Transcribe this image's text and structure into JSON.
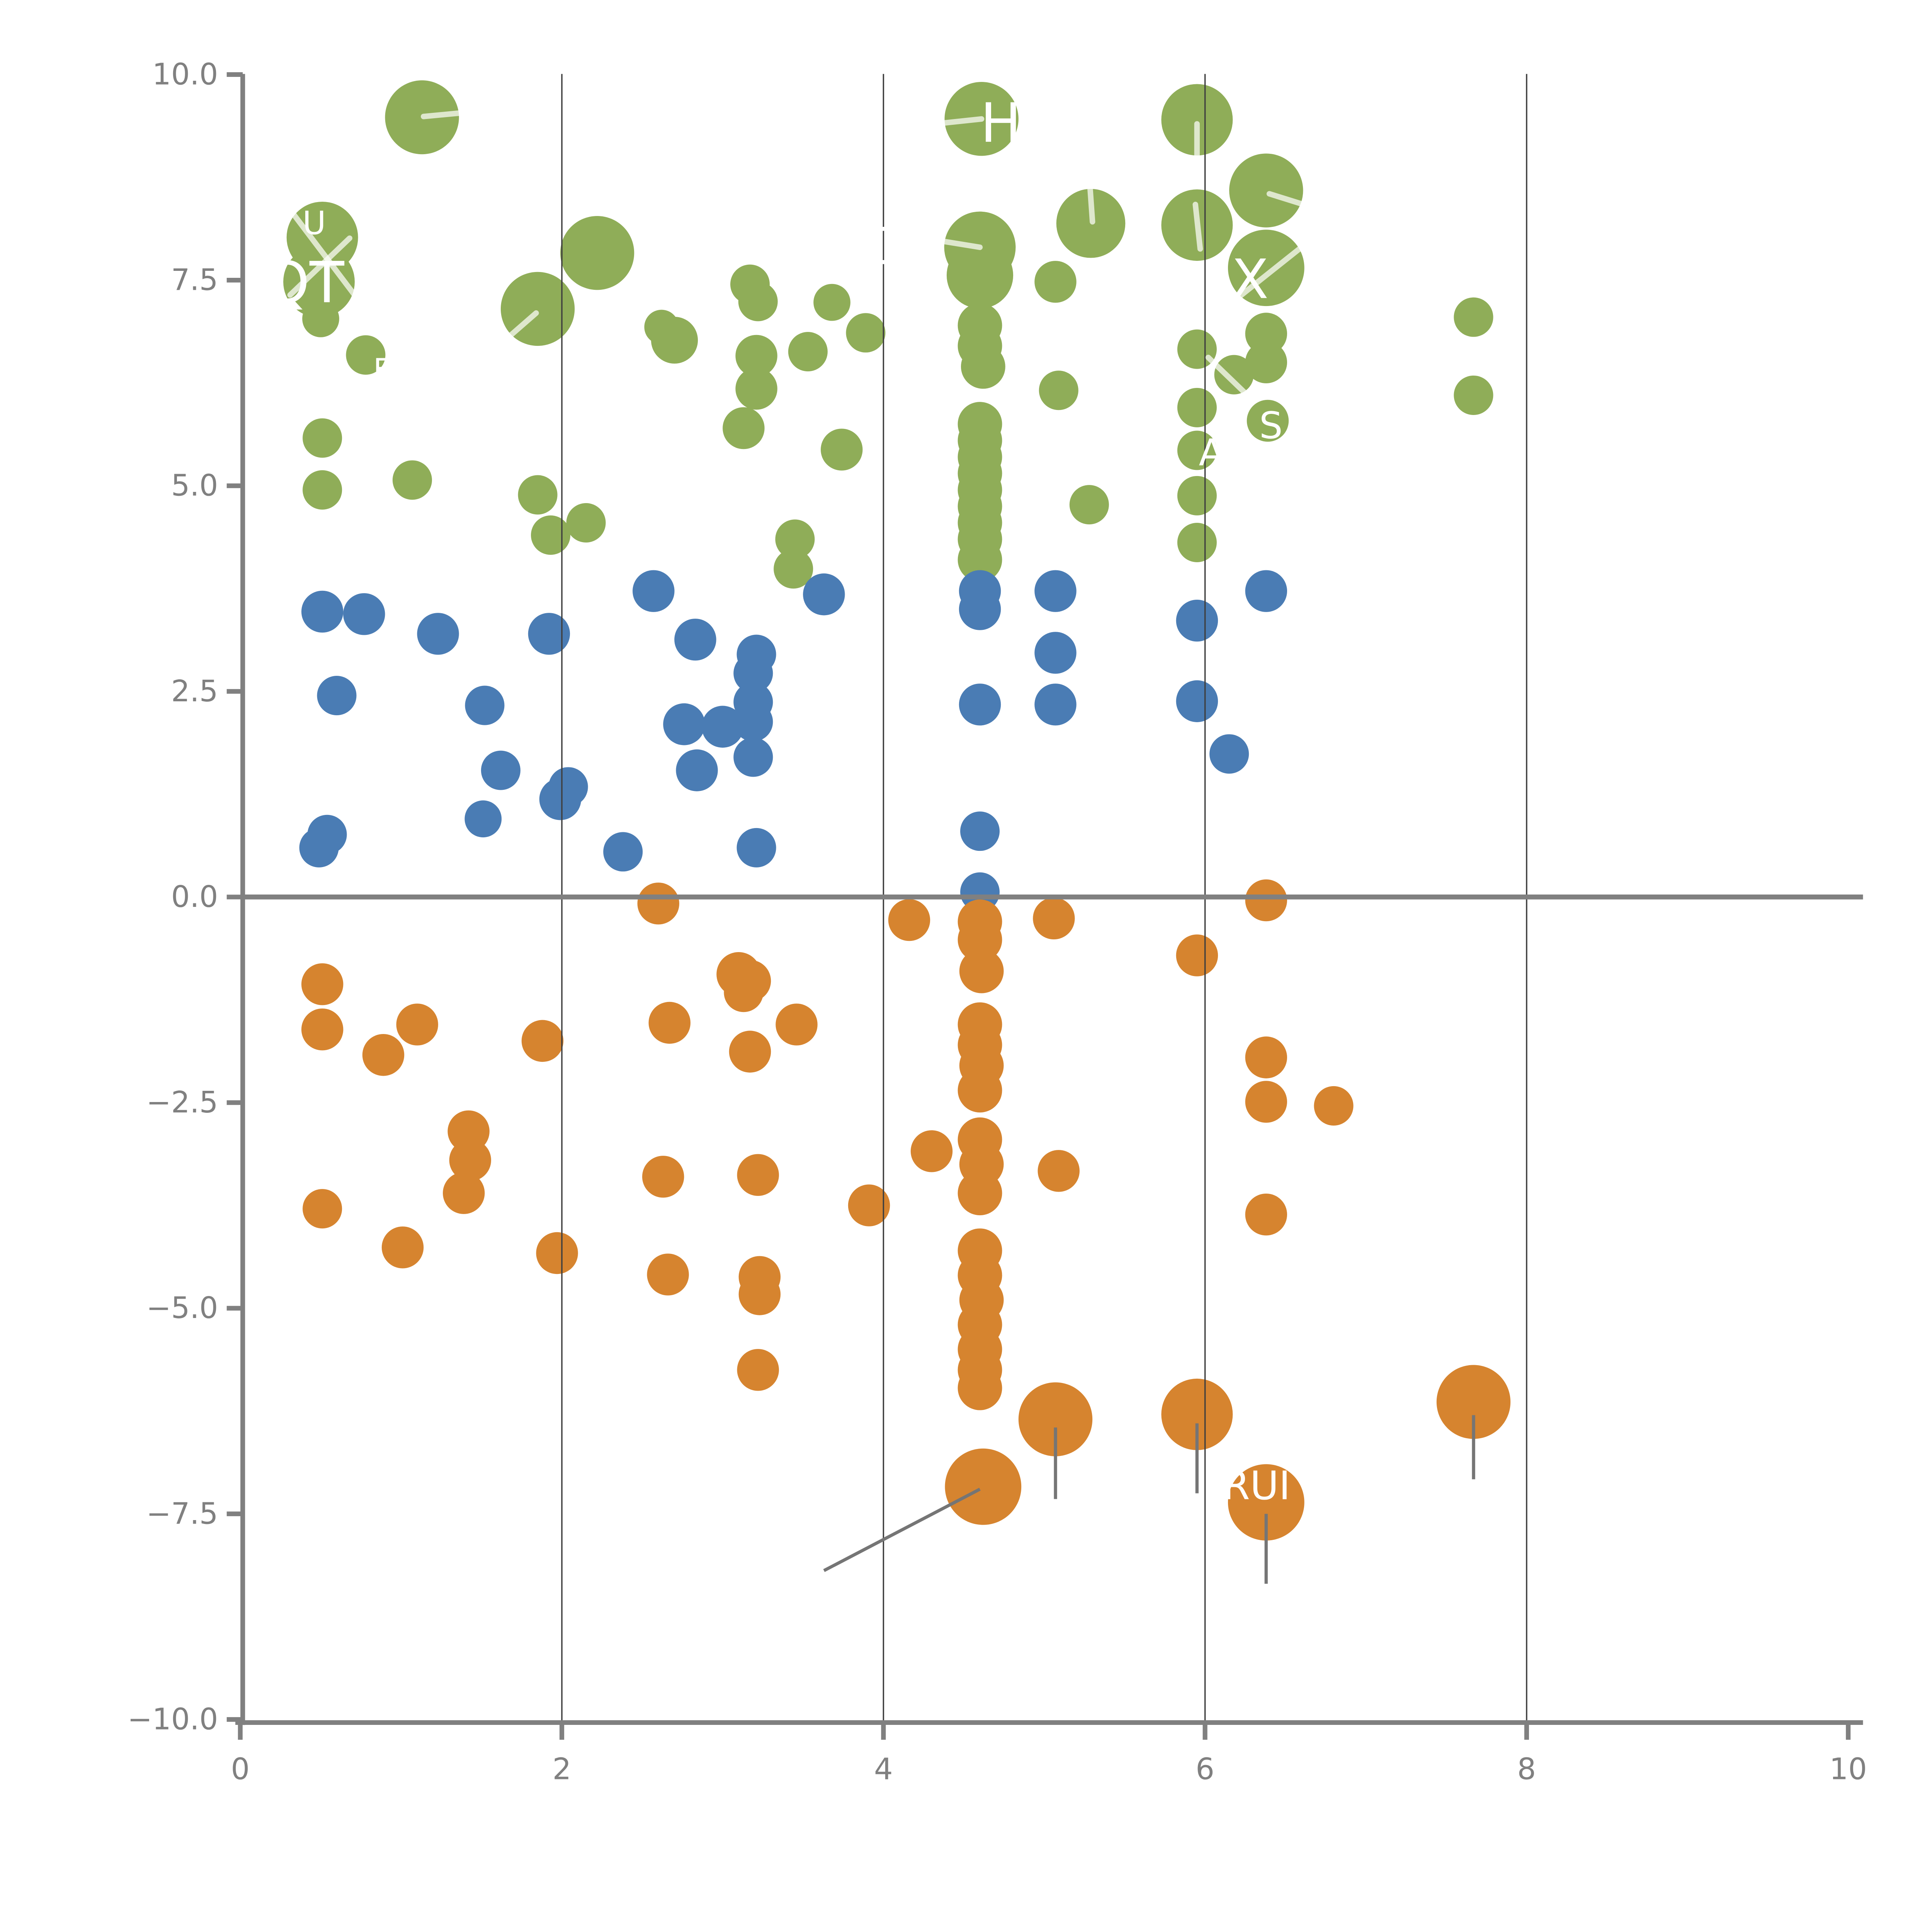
{
  "chart_data": {
    "type": "scatter",
    "title": "",
    "xlabel": "",
    "ylabel": "",
    "xlim": [
      0,
      10
    ],
    "ylim": [
      -10,
      10
    ],
    "x_tick_labels": [
      "0",
      "2",
      "4",
      "6",
      "8",
      "10"
    ],
    "x_tick_values": [
      0,
      2,
      4,
      6,
      8,
      10
    ],
    "y_tick_labels": [
      "10.0",
      "7.5",
      "5.0",
      "2.5",
      "0.0",
      "−2.5",
      "−5.0",
      "−7.5",
      "−10.0"
    ],
    "y_tick_values": [
      10,
      7.5,
      5,
      2.5,
      0,
      -2.5,
      -5,
      -7.5,
      -10
    ],
    "gridlines_x": [
      2,
      4,
      6,
      8
    ],
    "zero_line_y": 0,
    "grid_on": true,
    "legend": "none",
    "colors": {
      "green": "#8FAD58",
      "blue": "#4A7CB4",
      "orange": "#D6842F",
      "axis_gray": "#808080",
      "grid_dark": "#3f3f3f",
      "tick_label_gray": "#808080",
      "leader_gray": "#757575",
      "leader_white": "rgba(255,255,255,0.7)",
      "label_white": "#ffffff",
      "background": "#ffffff"
    },
    "series": [
      {
        "name": "group-green-positive",
        "color_key": "green",
        "points": [
          [
            1.13,
            9.48,
            30
          ],
          [
            4.61,
            9.46,
            30
          ],
          [
            5.95,
            9.45,
            29
          ],
          [
            6.38,
            8.59,
            30
          ],
          [
            5.29,
            8.19,
            28
          ],
          [
            5.95,
            8.17,
            29
          ],
          [
            0.51,
            8.02,
            29
          ],
          [
            0.49,
            7.48,
            29
          ],
          [
            2.22,
            7.83,
            30
          ],
          [
            1.85,
            7.15,
            30
          ],
          [
            4.6,
            7.9,
            29
          ],
          [
            4.6,
            7.56,
            27
          ],
          [
            6.38,
            7.65,
            31
          ],
          [
            0.5,
            7.03,
            15
          ],
          [
            0.78,
            6.59,
            16
          ],
          [
            0.51,
            5.58,
            16
          ],
          [
            0.51,
            4.95,
            16
          ],
          [
            1.07,
            5.07,
            16
          ],
          [
            1.85,
            4.89,
            16
          ],
          [
            1.93,
            4.4,
            16
          ],
          [
            2.15,
            4.55,
            16
          ],
          [
            2.62,
            6.93,
            14
          ],
          [
            2.7,
            6.77,
            19
          ],
          [
            3.17,
            7.45,
            16
          ],
          [
            3.22,
            7.24,
            16
          ],
          [
            3.21,
            6.58,
            17
          ],
          [
            3.21,
            6.18,
            17
          ],
          [
            3.53,
            6.63,
            16
          ],
          [
            3.13,
            5.7,
            17
          ],
          [
            3.68,
            7.23,
            15
          ],
          [
            3.89,
            6.86,
            16
          ],
          [
            3.74,
            5.44,
            17
          ],
          [
            3.45,
            4.35,
            16
          ],
          [
            3.44,
            3.99,
            16
          ],
          [
            4.6,
            6.95,
            18
          ],
          [
            4.6,
            6.7,
            18
          ],
          [
            4.62,
            6.45,
            18
          ],
          [
            4.6,
            5.75,
            18
          ],
          [
            4.6,
            5.55,
            18
          ],
          [
            4.6,
            5.35,
            18
          ],
          [
            4.6,
            5.15,
            18
          ],
          [
            4.6,
            4.95,
            18
          ],
          [
            4.6,
            4.75,
            18
          ],
          [
            4.6,
            4.55,
            18
          ],
          [
            4.6,
            4.35,
            18
          ],
          [
            4.6,
            4.1,
            18
          ],
          [
            5.07,
            7.48,
            17
          ],
          [
            5.09,
            6.16,
            16
          ],
          [
            5.28,
            4.77,
            16
          ],
          [
            5.95,
            6.66,
            16
          ],
          [
            5.95,
            5.95,
            16
          ],
          [
            5.95,
            5.43,
            16
          ],
          [
            5.95,
            4.88,
            16
          ],
          [
            5.95,
            4.31,
            16
          ],
          [
            6.38,
            6.85,
            17
          ],
          [
            6.38,
            6.5,
            17
          ],
          [
            6.18,
            6.35,
            16
          ],
          [
            6.39,
            5.79,
            17
          ],
          [
            7.67,
            7.05,
            16
          ],
          [
            7.67,
            6.1,
            16
          ]
        ]
      },
      {
        "name": "group-blue-middle",
        "color_key": "blue",
        "points": [
          [
            0.51,
            3.47,
            17
          ],
          [
            0.77,
            3.44,
            17
          ],
          [
            1.23,
            3.2,
            17
          ],
          [
            1.92,
            3.2,
            17
          ],
          [
            0.6,
            2.45,
            16
          ],
          [
            1.52,
            2.33,
            16
          ],
          [
            1.62,
            1.54,
            16
          ],
          [
            1.99,
            1.19,
            17
          ],
          [
            2.04,
            1.34,
            16
          ],
          [
            0.54,
            0.76,
            16
          ],
          [
            0.49,
            0.6,
            16
          ],
          [
            1.51,
            0.95,
            15
          ],
          [
            2.38,
            0.55,
            16
          ],
          [
            2.57,
            3.72,
            17
          ],
          [
            2.83,
            3.13,
            17
          ],
          [
            3.21,
            2.95,
            16
          ],
          [
            3.19,
            2.72,
            16
          ],
          [
            3.19,
            2.37,
            16
          ],
          [
            2.76,
            2.1,
            17
          ],
          [
            3.0,
            2.07,
            17
          ],
          [
            3.19,
            2.13,
            16
          ],
          [
            2.84,
            1.54,
            17
          ],
          [
            3.19,
            1.7,
            16
          ],
          [
            3.21,
            0.6,
            16
          ],
          [
            3.63,
            3.68,
            17
          ],
          [
            4.6,
            3.72,
            17
          ],
          [
            4.6,
            3.5,
            17
          ],
          [
            4.6,
            2.34,
            17
          ],
          [
            4.6,
            0.8,
            16
          ],
          [
            4.6,
            0.06,
            16
          ],
          [
            5.07,
            3.72,
            17
          ],
          [
            5.07,
            2.97,
            17
          ],
          [
            5.07,
            2.34,
            17
          ],
          [
            5.95,
            3.36,
            17
          ],
          [
            5.95,
            2.38,
            17
          ],
          [
            6.15,
            1.74,
            16
          ],
          [
            6.38,
            3.72,
            17
          ]
        ]
      },
      {
        "name": "group-orange-negative",
        "color_key": "orange",
        "points": [
          [
            2.6,
            -0.08,
            17
          ],
          [
            6.38,
            -0.04,
            17
          ],
          [
            4.16,
            -0.28,
            17
          ],
          [
            5.06,
            -0.26,
            17
          ],
          [
            5.95,
            -0.71,
            17
          ],
          [
            0.51,
            -1.06,
            17
          ],
          [
            0.51,
            -1.61,
            17
          ],
          [
            0.89,
            -1.92,
            17
          ],
          [
            1.1,
            -1.55,
            17
          ],
          [
            1.88,
            -1.75,
            17
          ],
          [
            2.67,
            -1.53,
            17
          ],
          [
            3.46,
            -1.55,
            17
          ],
          [
            3.1,
            -0.94,
            18
          ],
          [
            3.17,
            -1.02,
            17
          ],
          [
            3.13,
            -1.16,
            16
          ],
          [
            3.17,
            -1.88,
            17
          ],
          [
            6.38,
            -1.95,
            17
          ],
          [
            6.38,
            -2.49,
            17
          ],
          [
            6.8,
            -2.54,
            16
          ],
          [
            1.42,
            -2.85,
            17
          ],
          [
            1.43,
            -3.2,
            17
          ],
          [
            1.39,
            -3.6,
            17
          ],
          [
            0.51,
            -3.79,
            16
          ],
          [
            1.01,
            -4.26,
            17
          ],
          [
            1.97,
            -4.33,
            17
          ],
          [
            2.63,
            -3.4,
            17
          ],
          [
            3.22,
            -3.38,
            17
          ],
          [
            4.3,
            -3.09,
            17
          ],
          [
            5.09,
            -3.33,
            17
          ],
          [
            3.91,
            -3.75,
            17
          ],
          [
            6.38,
            -3.86,
            17
          ],
          [
            2.66,
            -4.59,
            17
          ],
          [
            3.23,
            -4.62,
            17
          ],
          [
            3.23,
            -4.83,
            17
          ],
          [
            3.22,
            -5.75,
            17
          ],
          [
            4.6,
            -0.3,
            18
          ],
          [
            4.6,
            -0.52,
            18
          ],
          [
            4.61,
            -0.9,
            18
          ],
          [
            4.6,
            -1.55,
            18
          ],
          [
            4.6,
            -1.8,
            18
          ],
          [
            4.61,
            -2.05,
            18
          ],
          [
            4.6,
            -2.35,
            18
          ],
          [
            4.6,
            -2.95,
            18
          ],
          [
            4.61,
            -3.25,
            18
          ],
          [
            4.6,
            -3.6,
            18
          ],
          [
            4.6,
            -4.3,
            18
          ],
          [
            4.6,
            -4.6,
            18
          ],
          [
            4.61,
            -4.9,
            18
          ],
          [
            4.6,
            -5.2,
            18
          ],
          [
            4.6,
            -5.5,
            18
          ],
          [
            4.6,
            -5.75,
            18
          ],
          [
            4.6,
            -5.97,
            18
          ],
          [
            4.62,
            -7.17,
            31
          ],
          [
            5.07,
            -6.35,
            30
          ],
          [
            5.95,
            -6.29,
            29
          ],
          [
            6.38,
            -7.36,
            31
          ],
          [
            7.67,
            -6.14,
            30
          ]
        ]
      }
    ],
    "point_labels": [
      {
        "text": "U",
        "x": 0.46,
        "y": 8.2,
        "size": 26
      },
      {
        "text": "QT",
        "x": 0.4,
        "y": 7.48,
        "size": 46
      },
      {
        "text": "F",
        "x": 0.88,
        "y": 6.42,
        "size": 24
      },
      {
        "text": "CH",
        "x": 4.1,
        "y": 7.92,
        "size": 40
      },
      {
        "text": "H",
        "x": 4.73,
        "y": 9.42,
        "size": 44
      },
      {
        "text": "X",
        "x": 6.28,
        "y": 7.52,
        "size": 44
      },
      {
        "text": "A",
        "x": 6.04,
        "y": 5.41,
        "size": 30
      },
      {
        "text": "S",
        "x": 6.41,
        "y": 5.74,
        "size": 30
      },
      {
        "text": "RUI",
        "x": 6.32,
        "y": -7.15,
        "size": 32
      }
    ],
    "leader_lines_gray": [
      [
        4.6,
        -7.2,
        3.63,
        -8.19
      ],
      [
        5.07,
        -6.45,
        5.07,
        -7.32
      ],
      [
        5.95,
        -6.4,
        5.95,
        -7.25
      ],
      [
        6.38,
        -7.5,
        6.38,
        -8.35
      ],
      [
        7.67,
        -6.3,
        7.67,
        -7.08
      ]
    ],
    "leader_lines_white": [
      [
        1.14,
        9.49,
        1.52,
        9.56
      ],
      [
        4.37,
        9.41,
        4.61,
        9.46
      ],
      [
        5.95,
        9.4,
        5.95,
        8.84
      ],
      [
        6.4,
        8.55,
        6.76,
        8.33
      ],
      [
        5.28,
        8.76,
        5.3,
        8.21
      ],
      [
        5.94,
        8.42,
        5.97,
        7.88
      ],
      [
        1.84,
        7.1,
        1.57,
        6.64
      ],
      [
        6.67,
        8.01,
        6.22,
        7.31
      ],
      [
        4.22,
        8.02,
        4.6,
        7.9
      ],
      [
        0.27,
        8.46,
        0.73,
        7.27
      ],
      [
        0.31,
        7.32,
        0.68,
        8.01
      ],
      [
        6.02,
        6.56,
        6.28,
        6.07
      ]
    ]
  }
}
